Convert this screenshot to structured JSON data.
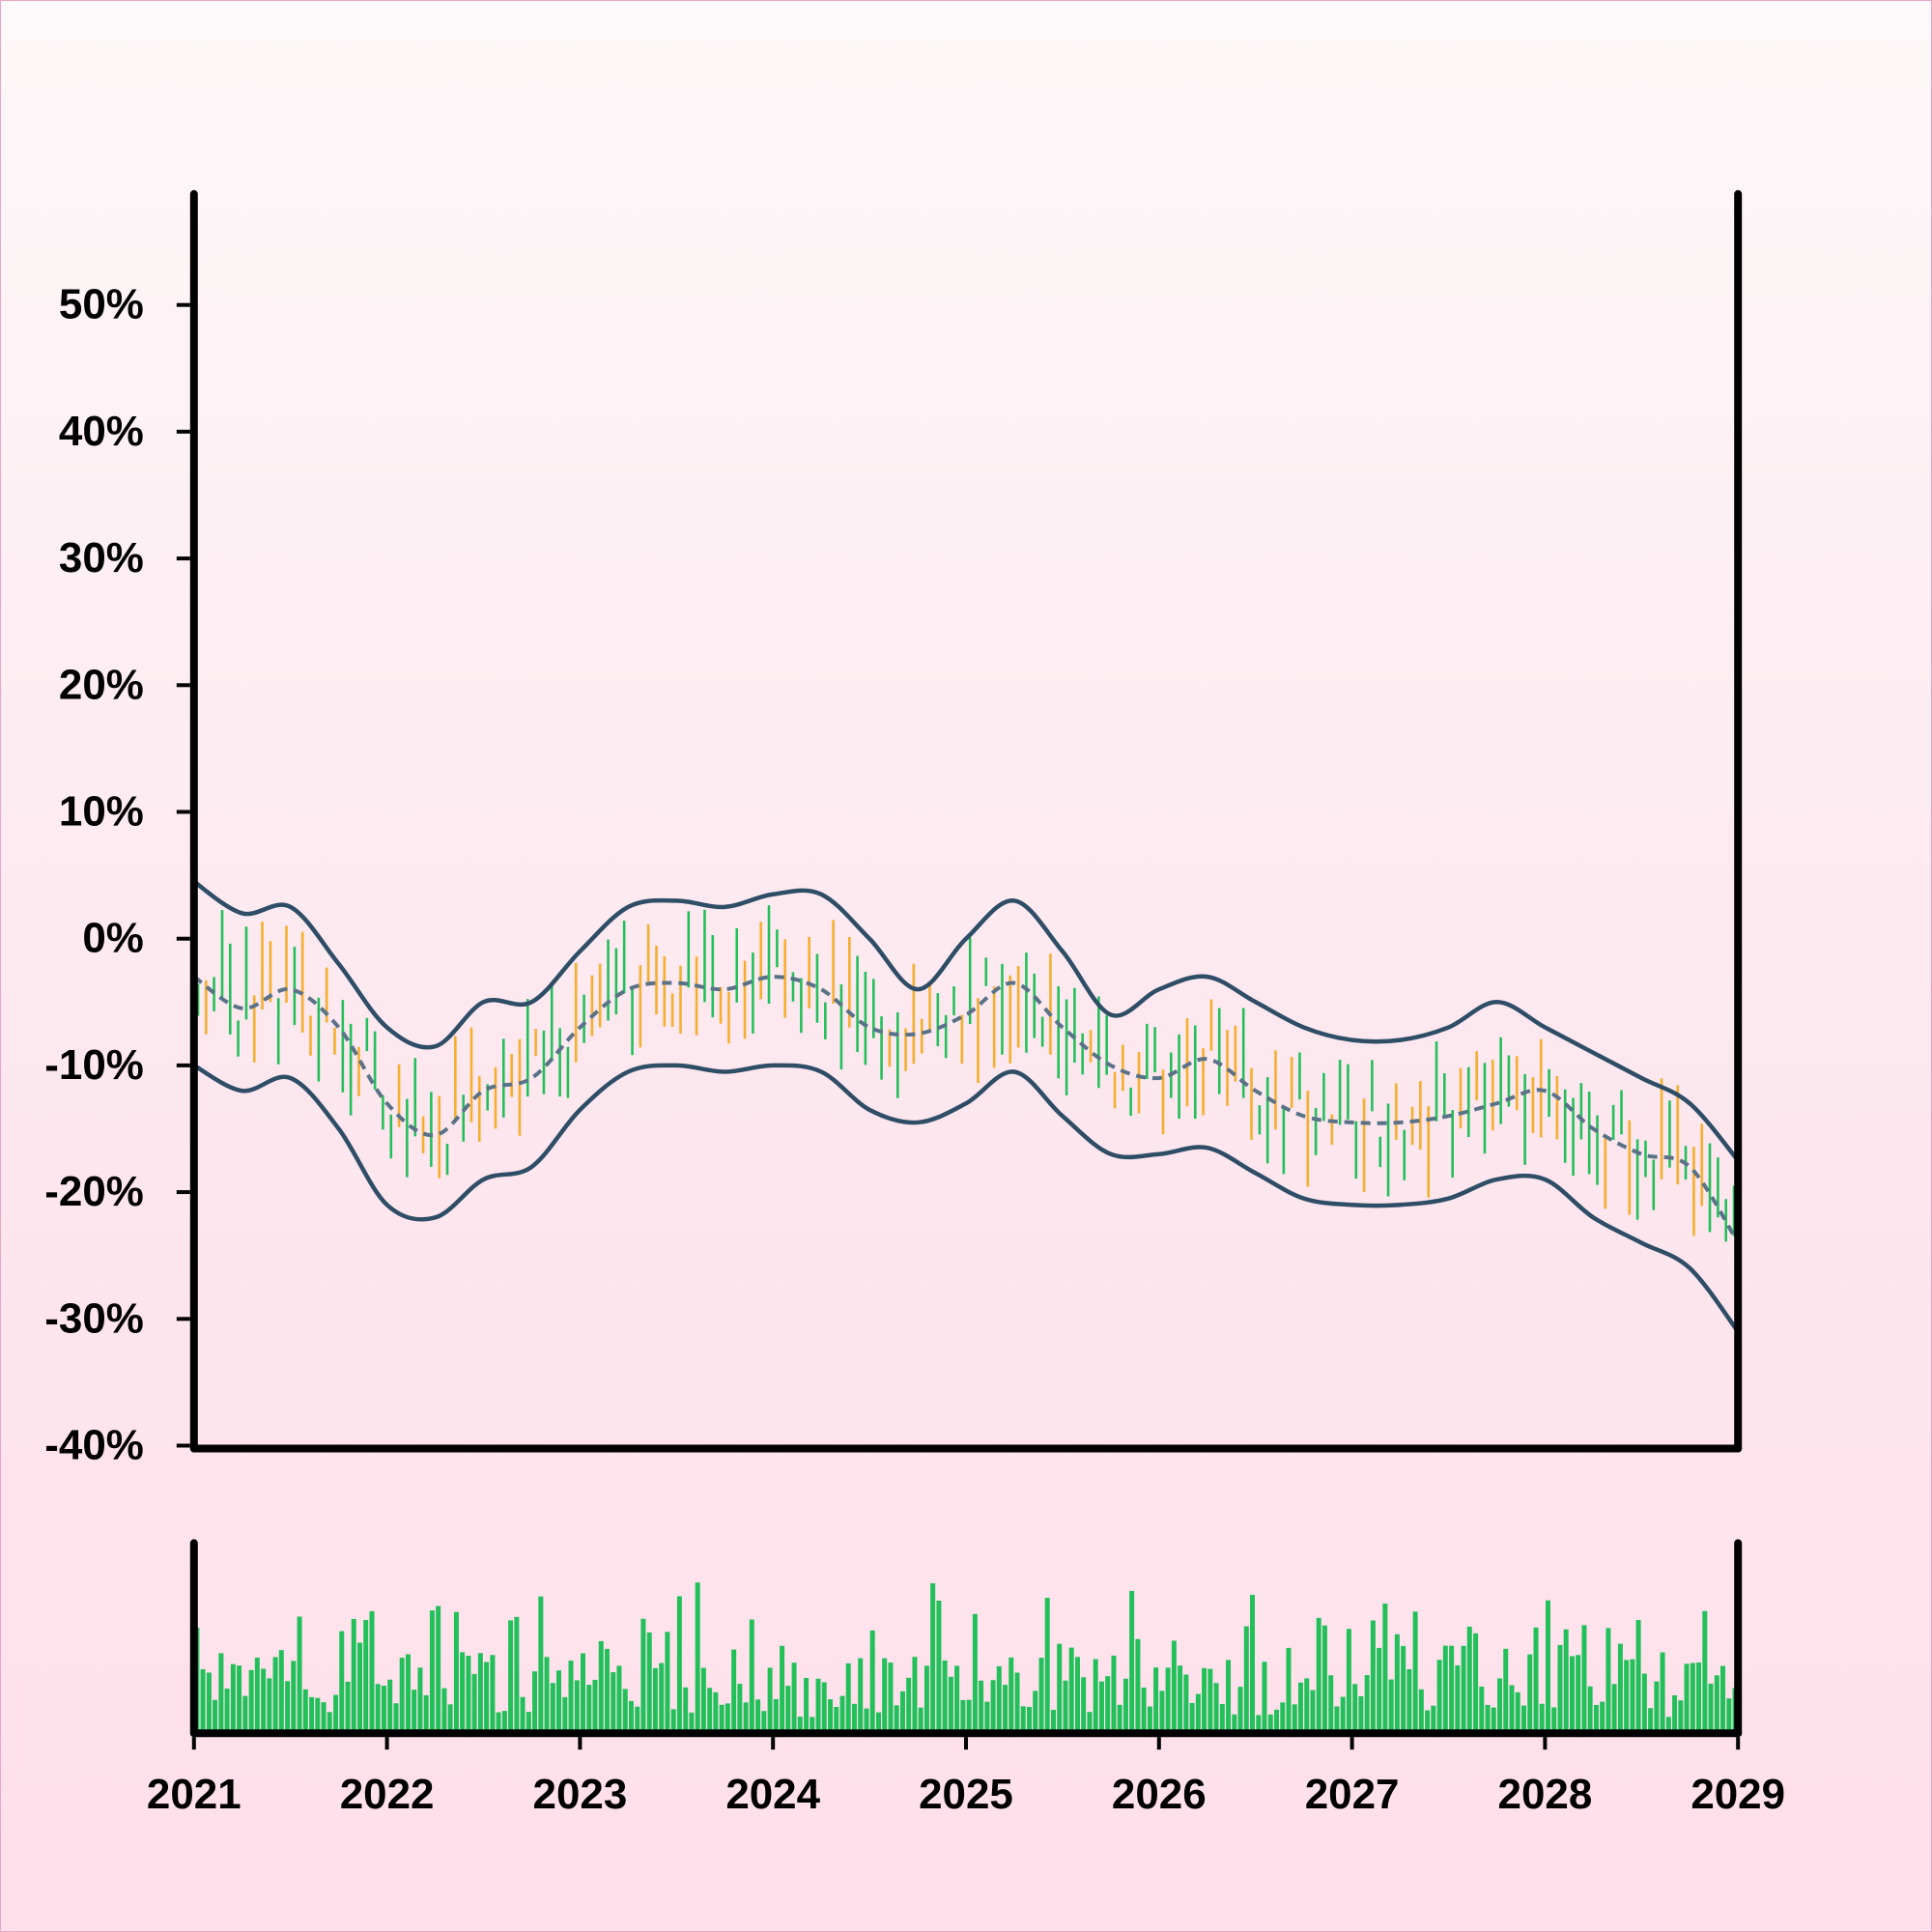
{
  "chart_data": {
    "type": "line",
    "title": "",
    "xlabel": "",
    "ylabel": "",
    "x_range": [
      2021,
      2029
    ],
    "x_ticks": [
      "2021",
      "2022",
      "2023",
      "2024",
      "2025",
      "2026",
      "2027",
      "2028",
      "2029"
    ],
    "ylim": [
      -40,
      58
    ],
    "y_ticks": [
      "50%",
      "40%",
      "30%",
      "20%",
      "10%",
      "0%",
      "-10%",
      "-20%",
      "-30%",
      "-40%"
    ],
    "y_unit": "%",
    "grid": false,
    "colors": {
      "up": "#22c05a",
      "down": "#f5ae2e",
      "band": "#2e4d66",
      "middle": "#5a7288",
      "volume": "#22c05a",
      "axis": "#000000"
    },
    "bands": {
      "x": [
        2021.0,
        2021.25,
        2021.5,
        2021.75,
        2022.0,
        2022.25,
        2022.5,
        2022.75,
        2023.0,
        2023.25,
        2023.5,
        2023.75,
        2024.0,
        2024.25,
        2024.5,
        2024.75,
        2025.0,
        2025.25,
        2025.5,
        2025.75,
        2026.0,
        2026.25,
        2026.5,
        2026.75,
        2027.0,
        2027.25,
        2027.5,
        2027.75,
        2028.0,
        2028.25,
        2028.5,
        2028.75,
        2029.0
      ],
      "upper": [
        4.5,
        2,
        2.5,
        -2,
        -7,
        -8.5,
        -5,
        -5,
        -1,
        2.5,
        3,
        2.5,
        3.5,
        3.5,
        0,
        -4,
        0,
        3,
        -1,
        -6,
        -4,
        -3,
        -5,
        -7,
        -8,
        -8,
        -7,
        -5,
        -7,
        -9,
        -11,
        -13,
        -17.5
      ],
      "middle": [
        -3,
        -5.5,
        -4,
        -7,
        -13,
        -15.5,
        -12,
        -11,
        -7,
        -4,
        -3.5,
        -4,
        -3,
        -4,
        -7,
        -7.5,
        -6,
        -3.5,
        -7,
        -10,
        -11,
        -9.5,
        -12,
        -14,
        -14.5,
        -14.5,
        -14,
        -13,
        -12,
        -15,
        -17,
        -18,
        -24
      ],
      "lower": [
        -10,
        -12,
        -11,
        -15,
        -21,
        -22,
        -19,
        -18,
        -13.5,
        -10.5,
        -10,
        -10.5,
        -10,
        -10.5,
        -13.5,
        -14.5,
        -13,
        -10.5,
        -14,
        -17,
        -17,
        -16.5,
        -18.5,
        -20.5,
        -21,
        -21,
        -20.5,
        -19,
        -19,
        -22,
        -24,
        -26,
        -31
      ]
    },
    "candle_count": 192,
    "volume_count": 256,
    "volume_range": [
      0,
      1
    ]
  }
}
